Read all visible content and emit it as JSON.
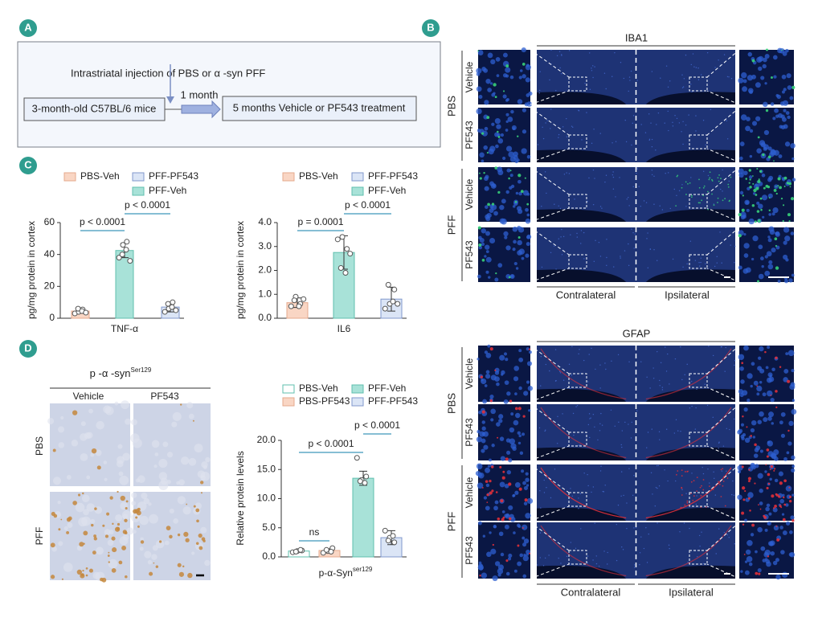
{
  "panel_labels": [
    "A",
    "B",
    "C",
    "D"
  ],
  "panel_a": {
    "injection": "Intrastriatal injection of PBS or α -syn PFF",
    "start": "3-month-old C57BL/6 mice",
    "interval": "1 month",
    "treatment": "5 months Vehicle or PF543 treatment"
  },
  "panel_b": {
    "iba1": {
      "title": "IBA1",
      "groups": [
        "PBS",
        "PFF"
      ],
      "rows": [
        "Vehicle",
        "PF543",
        "Vehicle",
        "PF543"
      ],
      "sides": [
        "Contralateral",
        "Ipsilateral"
      ]
    },
    "gfap": {
      "title": "GFAP",
      "groups": [
        "PBS",
        "PFF"
      ],
      "rows": [
        "Vehicle",
        "PF543",
        "Vehicle",
        "PF543"
      ],
      "sides": [
        "Contralateral",
        "Ipsilateral"
      ]
    }
  },
  "panel_d_images": {
    "title": "p -α -syn",
    "title_superscript": "Ser129",
    "columns": [
      "Vehicle",
      "PF543"
    ],
    "rows": [
      "PBS",
      "PFF"
    ]
  },
  "chart_data": [
    {
      "type": "bar",
      "ylabel": "pg/mg protein in cortex",
      "categories": [
        "TNF-α"
      ],
      "ylim": [
        0,
        60
      ],
      "yticks": [
        0,
        20,
        40,
        60
      ],
      "series": [
        {
          "name": "PBS-Veh",
          "color": "#f9d6c4",
          "edgecolor": "#e5a98c",
          "values": [
            4.5
          ],
          "errors": [
            1.5
          ],
          "points": [
            [
              3,
              4,
              5.5,
              6,
              4.5,
              3.5
            ]
          ]
        },
        {
          "name": "PFF-Veh",
          "color": "#a8e2d8",
          "edgecolor": "#5fbfae",
          "values": [
            42.5
          ],
          "errors": [
            4.5
          ],
          "points": [
            [
              38,
              46,
              48,
              40,
              43,
              36
            ]
          ]
        },
        {
          "name": "PFF-PF543",
          "color": "#dbe5f6",
          "edgecolor": "#8198cc",
          "values": [
            7
          ],
          "errors": [
            3
          ],
          "points": [
            [
              4,
              6,
              10,
              9,
              7,
              5
            ]
          ]
        }
      ],
      "annotations": [
        {
          "label": "p < 0.0001",
          "between": [
            "PBS-Veh",
            "PFF-Veh"
          ]
        },
        {
          "label": "p < 0.0001",
          "between": [
            "PFF-Veh",
            "PFF-PF543"
          ]
        }
      ]
    },
    {
      "type": "bar",
      "ylabel": "pg/mg protein in cortex",
      "categories": [
        "IL6"
      ],
      "ylim": [
        0,
        4
      ],
      "yticks": [
        {
          "value": 0,
          "label": "0.0"
        },
        {
          "value": 1,
          "label": "1.0"
        },
        {
          "value": 2,
          "label": "2.0"
        },
        {
          "value": 3,
          "label": "3.0"
        },
        {
          "value": 4,
          "label": "4.0"
        }
      ],
      "series": [
        {
          "name": "PBS-Veh",
          "color": "#f9d6c4",
          "edgecolor": "#e5a98c",
          "values": [
            0.65
          ],
          "errors": [
            0.2
          ],
          "points": [
            [
              0.5,
              0.9,
              0.6,
              0.75,
              0.5,
              0.8
            ]
          ]
        },
        {
          "name": "PFF-Veh",
          "color": "#a8e2d8",
          "edgecolor": "#5fbfae",
          "values": [
            2.75
          ],
          "errors": [
            0.7
          ],
          "points": [
            [
              3.3,
              3.4,
              2.9,
              2.1,
              1.9,
              2.7
            ]
          ]
        },
        {
          "name": "PFF-PF543",
          "color": "#dbe5f6",
          "edgecolor": "#8198cc",
          "values": [
            0.8
          ],
          "errors": [
            0.5
          ],
          "points": [
            [
              0.4,
              0.6,
              1.2,
              1.4,
              0.7,
              0.6
            ]
          ]
        }
      ],
      "annotations": [
        {
          "label": "p = 0.0001",
          "between": [
            "PBS-Veh",
            "PFF-Veh"
          ]
        },
        {
          "label": "p < 0.0001",
          "between": [
            "PFF-Veh",
            "PFF-PF543"
          ]
        }
      ]
    },
    {
      "type": "bar",
      "ylabel": "Relative protein levels",
      "categories": [
        "p-α-Syn"
      ],
      "xlabel_superscript": "ser129",
      "ylim": [
        0,
        20
      ],
      "yticks": [
        {
          "value": 0,
          "label": "0.0"
        },
        {
          "value": 5,
          "label": "5.0"
        },
        {
          "value": 10,
          "label": "10.0"
        },
        {
          "value": 15,
          "label": "15.0"
        },
        {
          "value": 20,
          "label": "20.0"
        }
      ],
      "series": [
        {
          "name": "PBS-Veh",
          "color": "#ffffff",
          "edgecolor": "#5fbfae",
          "values": [
            1.0
          ],
          "errors": [
            0.2
          ],
          "points": [
            [
              0.8,
              1.0,
              1.1,
              0.9,
              1.2
            ]
          ]
        },
        {
          "name": "PFF-Veh",
          "color": "#a8e2d8",
          "edgecolor": "#5fbfae",
          "values": [
            13.5
          ],
          "errors": [
            1.2
          ],
          "points": [
            [
              17,
              13.2,
              13.8,
              13.0,
              12.7
            ]
          ]
        },
        {
          "name": "PBS-PF543",
          "color": "#f9d6c4",
          "edgecolor": "#e5a98c",
          "values": [
            1.1
          ],
          "errors": [
            0.3
          ],
          "points": [
            [
              0.7,
              1.0,
              1.5,
              1.2,
              0.9
            ]
          ]
        },
        {
          "name": "PFF-PF543",
          "color": "#dbe5f6",
          "edgecolor": "#8198cc",
          "values": [
            3.3
          ],
          "errors": [
            1.2
          ],
          "points": [
            [
              4.5,
              3.3,
              2.5,
              2.8,
              3.6
            ]
          ]
        }
      ],
      "annotations": [
        {
          "label": "ns",
          "between": [
            "PBS-Veh",
            "PBS-PF543"
          ]
        },
        {
          "label": "p < 0.0001",
          "between": [
            "PBS-Veh",
            "PFF-Veh"
          ]
        },
        {
          "label": "p < 0.0001",
          "between": [
            "PFF-Veh",
            "PFF-PF543"
          ]
        }
      ]
    }
  ]
}
